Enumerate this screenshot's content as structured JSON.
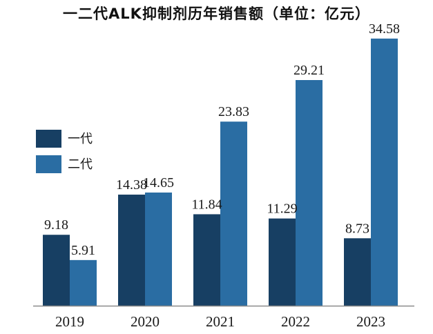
{
  "chart_data": {
    "type": "bar",
    "title": "一二代ALK抑制剂历年销售额（单位：亿元）",
    "xlabel": "",
    "ylabel": "",
    "categories": [
      "2019",
      "2020",
      "2021",
      "2022",
      "2023"
    ],
    "series": [
      {
        "name": "一代",
        "values": [
          9.18,
          14.38,
          11.84,
          11.29,
          8.73
        ],
        "color": "#173f63"
      },
      {
        "name": "二代",
        "values": [
          5.91,
          14.65,
          23.83,
          29.21,
          34.58
        ],
        "color": "#2a6da3"
      }
    ],
    "ylim": [
      0,
      36
    ],
    "grid": false,
    "legend": "left-middle"
  }
}
